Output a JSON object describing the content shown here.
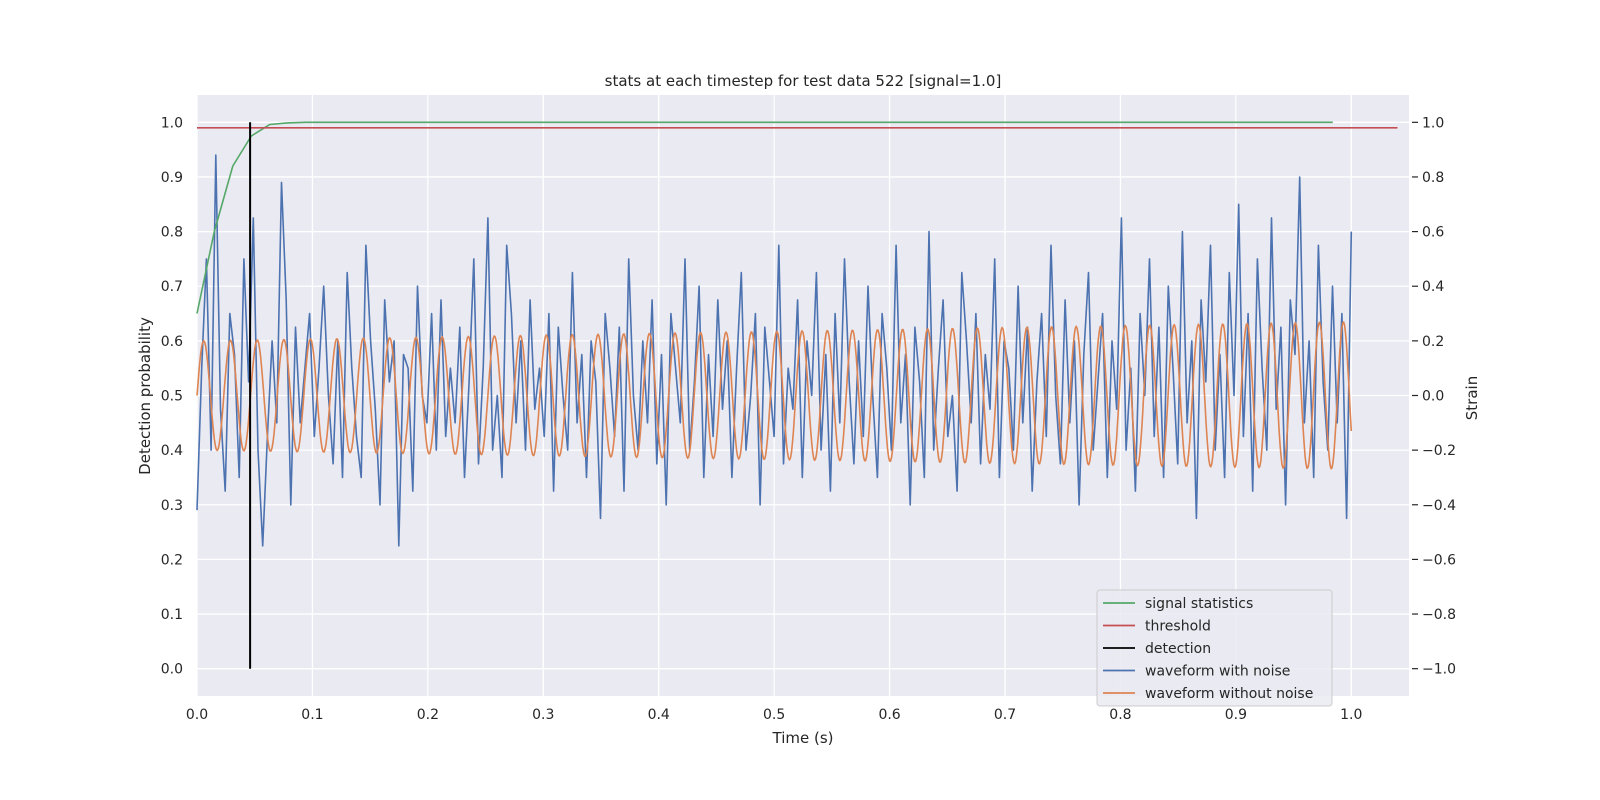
{
  "chart_data": {
    "type": "line",
    "title": "stats at each timestep for test data 522 [signal=1.0]",
    "xlabel": "Time (s)",
    "ylabel_left": "Detection probability",
    "ylabel_right": "Strain",
    "xlim": [
      0.0,
      1.05
    ],
    "ylim_left": [
      -0.05,
      1.05
    ],
    "ylim_right": [
      -1.1,
      1.1
    ],
    "x_ticks": [
      "0.0",
      "0.1",
      "0.2",
      "0.3",
      "0.4",
      "0.5",
      "0.6",
      "0.7",
      "0.8",
      "0.9",
      "1.0"
    ],
    "y_left_ticks": [
      "0.0",
      "0.1",
      "0.2",
      "0.3",
      "0.4",
      "0.5",
      "0.6",
      "0.7",
      "0.8",
      "0.9",
      "1.0"
    ],
    "y_right_ticks": [
      "−1.0",
      "−0.8",
      "−0.6",
      "−0.4",
      "−0.2",
      "0.0",
      "0.2",
      "0.4",
      "0.6",
      "0.8",
      "1.0"
    ],
    "grid": true,
    "legend_position": "lower-right",
    "colors": {
      "background": "#eaeaf2",
      "grid": "#ffffff",
      "signal_statistics": "#55a868",
      "threshold": "#c44e52",
      "detection": "#000000",
      "waveform_noise": "#4c72b0",
      "waveform_clean": "#dd8452"
    },
    "series": [
      {
        "name": "signal statistics",
        "axis": "left",
        "x": [
          0.0,
          0.015,
          0.031,
          0.047,
          0.063,
          0.078,
          0.094,
          0.2,
          0.4,
          0.6,
          0.8,
          0.984
        ],
        "y": [
          0.65,
          0.8,
          0.92,
          0.975,
          0.996,
          0.999,
          1.0,
          1.0,
          1.0,
          1.0,
          1.0,
          1.0
        ]
      },
      {
        "name": "threshold",
        "axis": "left",
        "x": [
          0.0,
          1.04
        ],
        "y": [
          0.99,
          0.99
        ]
      },
      {
        "name": "detection",
        "axis": "left",
        "x": [
          0.046,
          0.046
        ],
        "y": [
          0.0,
          1.0
        ]
      },
      {
        "name": "waveform with noise",
        "axis": "right",
        "x_range": [
          0.0,
          1.0
        ],
        "y": [
          -0.42,
          0.1,
          0.5,
          -0.2,
          0.88,
          -0.05,
          -0.35,
          0.3,
          0.15,
          -0.3,
          0.5,
          0.05,
          0.65,
          -0.2,
          -0.55,
          -0.15,
          0.2,
          -0.1,
          0.78,
          0.35,
          -0.4,
          0.25,
          -0.1,
          0.1,
          0.3,
          -0.15,
          0.1,
          0.4,
          0.0,
          -0.25,
          0.2,
          -0.3,
          0.45,
          0.1,
          -0.15,
          -0.3,
          0.55,
          0.2,
          -0.05,
          -0.4,
          0.35,
          0.05,
          0.2,
          -0.55,
          0.15,
          0.1,
          -0.35,
          0.4,
          0.0,
          -0.1,
          0.3,
          -0.2,
          0.35,
          -0.15,
          0.1,
          -0.1,
          0.25,
          -0.3,
          0.05,
          0.5,
          -0.25,
          0.1,
          0.65,
          -0.2,
          0.0,
          -0.3,
          0.55,
          0.3,
          -0.1,
          0.2,
          -0.2,
          0.35,
          -0.05,
          0.1,
          -0.15,
          0.3,
          -0.35,
          0.25,
          0.0,
          -0.2,
          0.45,
          -0.1,
          0.15,
          -0.3,
          0.2,
          0.05,
          -0.45,
          0.3,
          0.1,
          -0.15,
          0.25,
          -0.35,
          0.5,
          0.0,
          -0.2,
          0.2,
          -0.1,
          0.35,
          -0.25,
          0.15,
          -0.4,
          0.3,
          0.1,
          -0.1,
          0.5,
          -0.2,
          0.05,
          0.4,
          -0.3,
          0.15,
          -0.15,
          0.35,
          -0.05,
          0.2,
          -0.3,
          0.1,
          0.45,
          -0.2,
          0.0,
          0.3,
          -0.4,
          0.25,
          0.05,
          -0.15,
          0.55,
          -0.25,
          0.1,
          -0.05,
          0.35,
          -0.3,
          0.2,
          0.0,
          0.45,
          -0.2,
          0.15,
          -0.35,
          0.3,
          -0.1,
          0.5,
          0.05,
          -0.25,
          0.2,
          -0.15,
          0.4,
          0.0,
          -0.3,
          0.3,
          0.1,
          -0.2,
          0.55,
          -0.1,
          0.15,
          -0.4,
          0.25,
          0.05,
          -0.3,
          0.6,
          -0.2,
          0.1,
          0.35,
          -0.15,
          0.0,
          -0.35,
          0.45,
          0.2,
          -0.1,
          0.3,
          -0.25,
          0.15,
          -0.05,
          0.5,
          -0.3,
          0.2,
          0.1,
          -0.2,
          0.4,
          -0.1,
          0.25,
          -0.35,
          0.05,
          0.3,
          -0.15,
          0.55,
          0.0,
          -0.25,
          0.35,
          -0.1,
          0.2,
          -0.4,
          0.15,
          0.45,
          -0.2,
          0.05,
          0.3,
          -0.3,
          0.2,
          -0.05,
          0.65,
          -0.2,
          0.1,
          -0.35,
          0.3,
          0.0,
          0.5,
          -0.15,
          0.25,
          -0.3,
          0.4,
          0.1,
          -0.25,
          0.6,
          -0.1,
          0.2,
          -0.45,
          0.35,
          0.05,
          0.55,
          -0.2,
          0.15,
          -0.3,
          0.45,
          0.0,
          0.7,
          -0.15,
          0.3,
          -0.35,
          0.5,
          0.1,
          -0.2,
          0.65,
          -0.05,
          0.25,
          -0.4,
          0.35,
          0.15,
          0.8,
          -0.1,
          0.2,
          -0.3,
          0.55,
          0.05,
          -0.2,
          0.4,
          -0.1,
          0.3,
          -0.45,
          0.6
        ]
      },
      {
        "name": "waveform without noise",
        "axis": "right",
        "x_range": [
          0.0,
          1.0
        ],
        "amplitude_start": 0.2,
        "amplitude_end": 0.27,
        "cycles": 43
      }
    ]
  }
}
